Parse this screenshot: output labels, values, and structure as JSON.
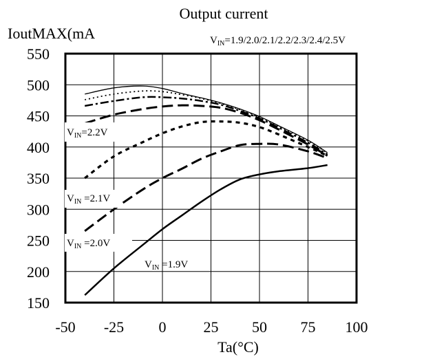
{
  "chart_data": {
    "type": "line",
    "title": "Output current",
    "ylabel": "IoutMAX(mA",
    "xlabel": "Ta(°C)",
    "legend_text": {
      "prefix": "V",
      "sub": "IN",
      "suffix": "=1.9/2.0/2.1/2.2/2.3/2.4/2.5V"
    },
    "xlim": [
      -50,
      100
    ],
    "ylim": [
      150,
      550
    ],
    "x_ticks": [
      -50,
      -25,
      0,
      25,
      50,
      75,
      100
    ],
    "y_ticks": [
      150,
      200,
      250,
      300,
      350,
      400,
      450,
      500,
      550
    ],
    "x_tick_labels": [
      "-50",
      "-25",
      "0",
      "25",
      "50",
      "75",
      "100"
    ],
    "y_tick_labels": [
      "150",
      "200",
      "250",
      "300",
      "350",
      "400",
      "450",
      "500",
      "550"
    ],
    "grid": true,
    "series": [
      {
        "name": "1.9V",
        "style": "solid-thick",
        "x": [
          -40,
          -25,
          -10,
          0,
          10,
          20,
          30,
          40,
          50,
          60,
          75,
          85
        ],
        "y": [
          162,
          205,
          243,
          268,
          290,
          312,
          332,
          348,
          356,
          361,
          366,
          371
        ]
      },
      {
        "name": "2.0V",
        "style": "dash-long",
        "x": [
          -40,
          -25,
          -10,
          0,
          10,
          20,
          30,
          40,
          50,
          60,
          75,
          85
        ],
        "y": [
          265,
          300,
          332,
          350,
          365,
          381,
          393,
          403,
          405,
          404,
          393,
          382
        ]
      },
      {
        "name": "2.1V",
        "style": "dash-short",
        "x": [
          -40,
          -25,
          -10,
          0,
          10,
          20,
          30,
          40,
          50,
          60,
          75,
          85
        ],
        "y": [
          350,
          385,
          408,
          422,
          433,
          440,
          441,
          439,
          432,
          420,
          400,
          386
        ]
      },
      {
        "name": "2.2V",
        "style": "dash-long",
        "x": [
          -40,
          -25,
          -10,
          0,
          10,
          20,
          30,
          40,
          50,
          60,
          75,
          85
        ],
        "y": [
          438,
          452,
          461,
          465,
          467,
          466,
          463,
          455,
          443,
          428,
          404,
          386
        ]
      },
      {
        "name": "2.3V",
        "style": "dash-dot",
        "x": [
          -40,
          -25,
          -10,
          0,
          10,
          20,
          30,
          40,
          50,
          60,
          75,
          85
        ],
        "y": [
          466,
          474,
          480,
          480,
          478,
          474,
          468,
          458,
          446,
          431,
          407,
          388
        ]
      },
      {
        "name": "2.4V",
        "style": "dotted",
        "x": [
          -40,
          -25,
          -10,
          0,
          10,
          20,
          30,
          40,
          50,
          60,
          75,
          85
        ],
        "y": [
          476,
          485,
          490,
          489,
          484,
          478,
          470,
          460,
          448,
          433,
          410,
          390
        ]
      },
      {
        "name": "2.5V",
        "style": "solid-thin",
        "x": [
          -40,
          -25,
          -10,
          0,
          10,
          20,
          30,
          40,
          50,
          60,
          75,
          85
        ],
        "y": [
          485,
          495,
          498,
          494,
          486,
          479,
          471,
          461,
          449,
          434,
          411,
          391
        ]
      }
    ],
    "annotations": [
      {
        "prefix": "V",
        "sub": "IN",
        "suffix": "=2.2V"
      },
      {
        "prefix": "V",
        "sub": "IN",
        "suffix": " =2.1V"
      },
      {
        "prefix": "V",
        "sub": "IN",
        "suffix": " =2.0V"
      },
      {
        "prefix": "V",
        "sub": "IN",
        "suffix": " =1.9V"
      }
    ]
  }
}
